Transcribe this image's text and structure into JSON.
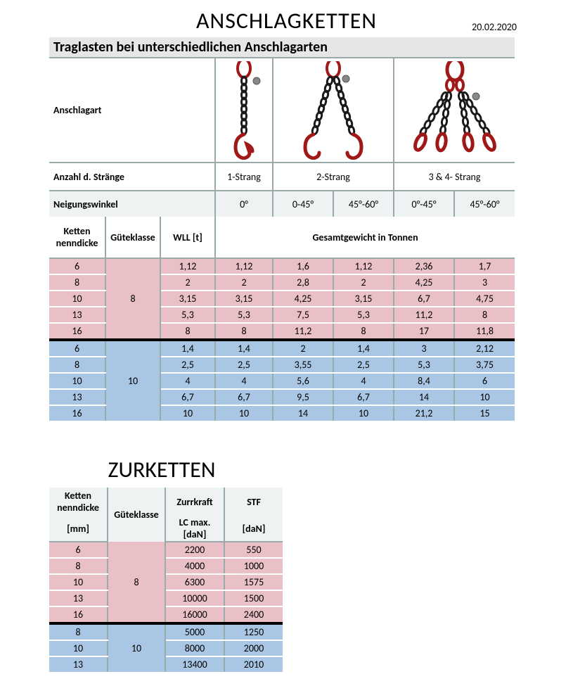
{
  "title1": "ANSCHLAGKETTEN",
  "date": "20.02.2020",
  "subtitle1": "Traglasten bei unterschiedlichen Anschlagarten",
  "labels": {
    "anschlagart": "Anschlagart",
    "anzahl": "Anzahl d. Stränge",
    "neigung": "Neigungswinkel",
    "ketten": "Ketten nenndicke",
    "guete": "Güteklasse",
    "wll": "WLL [t]",
    "gesamt": "Gesamtgewicht in Tonnen"
  },
  "strang": [
    "1-Strang",
    "2-Strang",
    "3 & 4- Strang"
  ],
  "angles": [
    "0°",
    "0-45°",
    "45°-60°",
    "0°-45°",
    "45°-60°"
  ],
  "colors": {
    "pink": "#eac0c7",
    "blue": "#a9c6e4",
    "header_bg": "#eef2f2",
    "border": "#99aaaa",
    "chain_red": "#a01818",
    "chain_dark": "#1a1a1a"
  },
  "table1": {
    "group8": {
      "class": "8",
      "rows": [
        {
          "dim": "6",
          "vals": [
            "1,12",
            "1,12",
            "1,6",
            "1,12",
            "2,36",
            "1,7"
          ]
        },
        {
          "dim": "8",
          "vals": [
            "2",
            "2",
            "2,8",
            "2",
            "4,25",
            "3"
          ]
        },
        {
          "dim": "10",
          "vals": [
            "3,15",
            "3,15",
            "4,25",
            "3,15",
            "6,7",
            "4,75"
          ]
        },
        {
          "dim": "13",
          "vals": [
            "5,3",
            "5,3",
            "7,5",
            "5,3",
            "11,2",
            "8"
          ]
        },
        {
          "dim": "16",
          "vals": [
            "8",
            "8",
            "11,2",
            "8",
            "17",
            "11,8"
          ]
        }
      ]
    },
    "group10": {
      "class": "10",
      "rows": [
        {
          "dim": "6",
          "vals": [
            "1,4",
            "1,4",
            "2",
            "1,4",
            "3",
            "2,12"
          ]
        },
        {
          "dim": "8",
          "vals": [
            "2,5",
            "2,5",
            "3,55",
            "2,5",
            "5,3",
            "3,75"
          ]
        },
        {
          "dim": "10",
          "vals": [
            "4",
            "4",
            "5,6",
            "4",
            "8,4",
            "6"
          ]
        },
        {
          "dim": "13",
          "vals": [
            "6,7",
            "6,7",
            "9,5",
            "6,7",
            "14",
            "10"
          ]
        },
        {
          "dim": "16",
          "vals": [
            "10",
            "10",
            "14",
            "10",
            "21,2",
            "15"
          ]
        }
      ]
    }
  },
  "title2": "ZURKETTEN",
  "t2_headers": {
    "row1": [
      "Ketten nenndicke",
      "Güteklasse",
      "Zurrkraft",
      "STF"
    ],
    "row2": [
      "[mm]",
      "",
      "LC max. [daN]",
      "[daN]"
    ]
  },
  "table2": {
    "group8": {
      "class": "8",
      "rows": [
        {
          "dim": "6",
          "lc": "2200",
          "stf": "550"
        },
        {
          "dim": "8",
          "lc": "4000",
          "stf": "1000"
        },
        {
          "dim": "10",
          "lc": "6300",
          "stf": "1575"
        },
        {
          "dim": "13",
          "lc": "10000",
          "stf": "1500"
        },
        {
          "dim": "16",
          "lc": "16000",
          "stf": "2400"
        }
      ]
    },
    "group10": {
      "class": "10",
      "rows": [
        {
          "dim": "8",
          "lc": "5000",
          "stf": "1250"
        },
        {
          "dim": "10",
          "lc": "8000",
          "stf": "2000"
        },
        {
          "dim": "13",
          "lc": "13400",
          "stf": "2010"
        }
      ]
    }
  }
}
